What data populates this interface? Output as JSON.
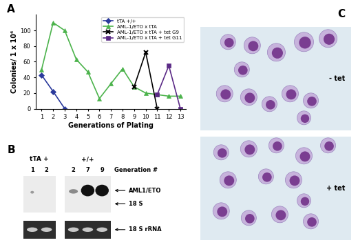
{
  "chart_data": {
    "type": "line",
    "x_label": "Generations of Plating",
    "y_label": "Colonies/ 1 x 10⁴",
    "xlim": [
      0.5,
      13.5
    ],
    "xticks": [
      1,
      2,
      3,
      4,
      5,
      6,
      7,
      8,
      9,
      10,
      11,
      12,
      13
    ],
    "ylim": [
      0,
      120
    ],
    "yticks": [
      0,
      20,
      40,
      60,
      80,
      100
    ],
    "legend": "upper right",
    "grid": false,
    "series": [
      {
        "name": "tTA +/+",
        "color": "#2b3a9c",
        "marker": "diamond",
        "x": [
          1,
          2,
          3
        ],
        "values": [
          43,
          22,
          0
        ]
      },
      {
        "name": "AML-1/ETO x tTA",
        "color": "#4cb34c",
        "marker": "triangle",
        "x": [
          1,
          2,
          3,
          4,
          5,
          6,
          7,
          8,
          9,
          10,
          11,
          12,
          13
        ],
        "values": [
          50,
          110,
          100,
          63,
          47,
          13,
          32,
          51,
          28,
          20,
          18,
          16,
          16
        ]
      },
      {
        "name": "AML-1/ETO x tTA + tet G9",
        "color": "#000000",
        "marker": "x",
        "x": [
          9,
          10,
          11
        ],
        "values": [
          28,
          72,
          0
        ]
      },
      {
        "name": "AML-1/ETO x tTA + tet G11",
        "color": "#5b2a86",
        "marker": "square",
        "x": [
          11,
          12,
          13
        ],
        "values": [
          18,
          55,
          0
        ]
      }
    ]
  },
  "panel_labels": [
    "A",
    "B",
    "C"
  ],
  "blot": {
    "group_labels": [
      "tTA +",
      "+/+"
    ],
    "lanes": [
      [
        "1",
        "2"
      ],
      [
        "2",
        "7",
        "9"
      ]
    ],
    "lane_header": "Generation #",
    "band_labels": [
      "AML1/ETO",
      "18 S"
    ],
    "loading_label": "18 S rRNA"
  },
  "micrographs": {
    "conditions": [
      "- tet",
      "+ tet"
    ]
  }
}
